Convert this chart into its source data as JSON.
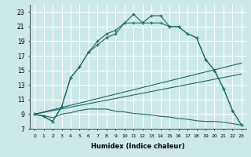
{
  "xlabel": "Humidex (Indice chaleur)",
  "background_color": "#cce8e8",
  "grid_color": "#ffffff",
  "line_color": "#1a6b63",
  "xlim": [
    -0.5,
    23.5
  ],
  "ylim": [
    7,
    24
  ],
  "xticks": [
    0,
    1,
    2,
    3,
    4,
    5,
    6,
    7,
    8,
    9,
    10,
    11,
    12,
    13,
    14,
    15,
    16,
    17,
    18,
    19,
    20,
    21,
    22,
    23
  ],
  "yticks": [
    7,
    9,
    11,
    13,
    15,
    17,
    19,
    21,
    23
  ],
  "curve_main_x": [
    0,
    1,
    2,
    3,
    4,
    5,
    6,
    7,
    8,
    9,
    10,
    11,
    12,
    13,
    14,
    15,
    16,
    17,
    18,
    19,
    20,
    21,
    22,
    23
  ],
  "curve_main_y": [
    9.0,
    8.7,
    8.0,
    10.0,
    14.0,
    15.5,
    17.5,
    18.5,
    19.5,
    20.0,
    21.5,
    21.5,
    21.5,
    21.5,
    21.5,
    21.0,
    21.0,
    20.0,
    19.5,
    16.5,
    15.0,
    12.5,
    9.5,
    7.5
  ],
  "curve_upper_x": [
    0,
    1,
    2,
    3,
    4,
    5,
    6,
    7,
    8,
    9,
    10,
    11,
    12,
    13,
    14,
    15,
    16,
    17,
    18,
    19,
    20,
    21,
    22,
    23
  ],
  "curve_upper_y": [
    9.0,
    8.7,
    8.0,
    10.0,
    14.0,
    15.5,
    17.5,
    19.0,
    20.0,
    20.5,
    21.5,
    22.7,
    21.5,
    22.5,
    22.5,
    21.0,
    21.0,
    20.0,
    19.5,
    16.5,
    15.0,
    12.5,
    9.5,
    7.5
  ],
  "line1_x": [
    0,
    23
  ],
  "line1_y": [
    9.0,
    16.0
  ],
  "line2_x": [
    0,
    23
  ],
  "line2_y": [
    9.0,
    14.5
  ],
  "flat_x": [
    0,
    1,
    2,
    3,
    4,
    5,
    6,
    7,
    8,
    9,
    10,
    11,
    12,
    13,
    14,
    15,
    16,
    17,
    18,
    19,
    20,
    21,
    22,
    23
  ],
  "flat_y": [
    9.0,
    8.8,
    8.5,
    9.0,
    9.2,
    9.5,
    9.7,
    9.7,
    9.7,
    9.4,
    9.3,
    9.1,
    9.0,
    8.9,
    8.7,
    8.6,
    8.4,
    8.3,
    8.1,
    8.0,
    8.0,
    7.9,
    7.7,
    7.5
  ]
}
